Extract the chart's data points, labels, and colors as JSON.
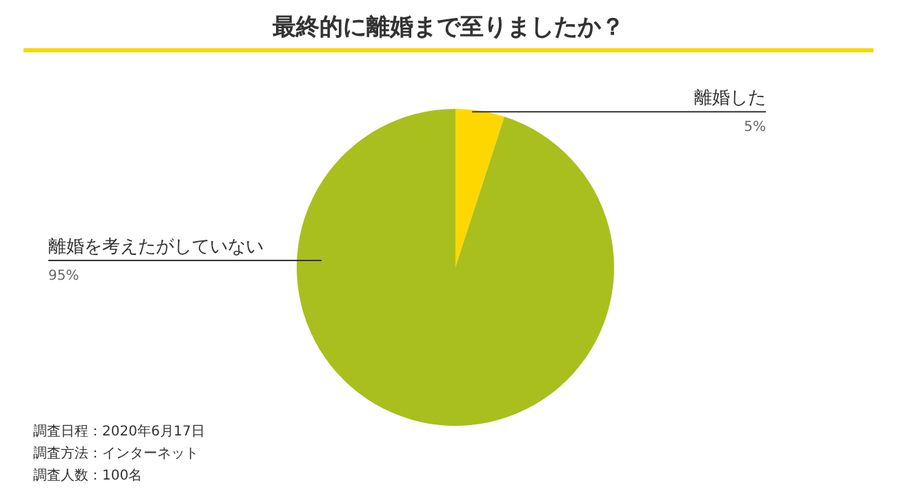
{
  "chart_data": {
    "type": "pie",
    "title": "最終的に離婚まで至りましたか？",
    "categories": [
      "離婚した",
      "離婚を考えたがしていない"
    ],
    "values": [
      5,
      95
    ],
    "colors": [
      "#ffd700",
      "#a9bf1e"
    ],
    "value_labels": [
      "5%",
      "95%"
    ],
    "annotations": [
      "調査日程：2020年6月17日",
      "調査方法：インターネット",
      "調査人数：100名"
    ]
  }
}
